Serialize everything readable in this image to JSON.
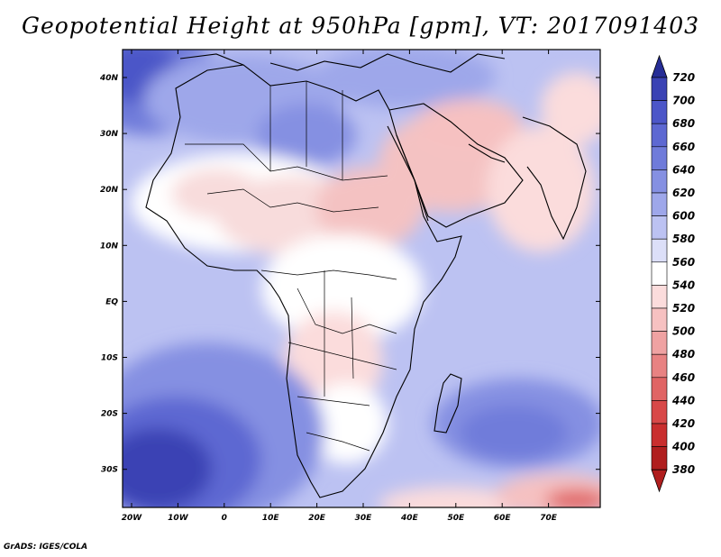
{
  "title": "Geopotential Height at 950hPa [gpm], VT: 2017091403",
  "footer": "GrADS: IGES/COLA",
  "axes": {
    "lat_labels": [
      "40N",
      "30N",
      "20N",
      "10N",
      "EQ",
      "10S",
      "20S",
      "30S"
    ],
    "lon_labels": [
      "20W",
      "10W",
      "0",
      "10E",
      "20E",
      "30E",
      "40E",
      "50E",
      "60E",
      "70E"
    ]
  },
  "colorbar": {
    "levels": [
      "720",
      "700",
      "680",
      "660",
      "640",
      "620",
      "600",
      "580",
      "560",
      "540",
      "520",
      "500",
      "480",
      "460",
      "440",
      "420",
      "400",
      "380"
    ],
    "colors": [
      "#262d96",
      "#3a42b4",
      "#4c56c8",
      "#5d68d2",
      "#6f7bda",
      "#8590e2",
      "#9ea7ea",
      "#bcc2f2",
      "#dcdff8",
      "#ffffff",
      "#fbdcdc",
      "#f6c1c1",
      "#efa2a2",
      "#e88282",
      "#e06464",
      "#d84848",
      "#c92e2e",
      "#b01e1e"
    ]
  },
  "colors": {
    "ocean_high": "#3a42b4",
    "land_neutral": "#ffffff",
    "land_warm": "#f8d4d4",
    "arabia_warm": "#f4c2c2",
    "low_red": "#d84848"
  }
}
